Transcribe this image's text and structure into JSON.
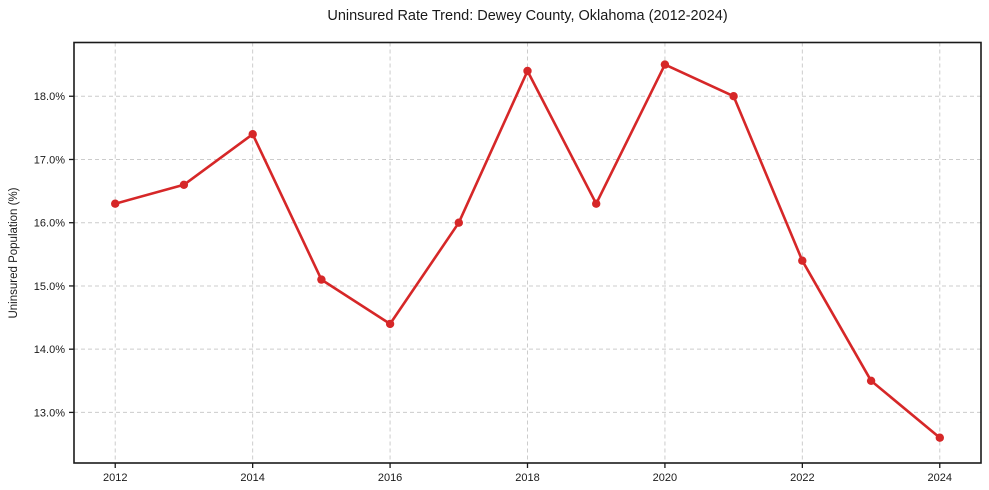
{
  "chart_data": {
    "type": "line",
    "title": "Uninsured Rate Trend: Dewey County, Oklahoma (2012-2024)",
    "xlabel": "",
    "ylabel": "Uninsured Population (%)",
    "x": [
      2012,
      2013,
      2014,
      2015,
      2016,
      2017,
      2018,
      2019,
      2020,
      2021,
      2022,
      2023,
      2024
    ],
    "values": [
      16.3,
      16.6,
      17.4,
      15.1,
      14.4,
      16.0,
      18.4,
      16.3,
      18.5,
      18.0,
      15.4,
      13.5,
      12.6
    ],
    "xlim": [
      2011.4,
      2024.6
    ],
    "ylim": [
      12.2,
      18.85
    ],
    "x_ticks": [
      2012,
      2014,
      2016,
      2018,
      2020,
      2022,
      2024
    ],
    "x_tick_labels": [
      "2012",
      "2014",
      "2016",
      "2018",
      "2020",
      "2022",
      "2024"
    ],
    "y_ticks": [
      13,
      14,
      15,
      16,
      17,
      18
    ],
    "y_tick_labels": [
      "13.0%",
      "14.0%",
      "15.0%",
      "16.0%",
      "17.0%",
      "18.0%"
    ],
    "grid": true,
    "grid_style": "dashed",
    "legend": "none",
    "marker": "circle",
    "colors": {
      "line": "#d62728",
      "marker": "#d62728",
      "grid": "#cccccc",
      "spine": "#1a1a1a",
      "text": "#1a1a1a",
      "background": "#ffffff"
    }
  }
}
